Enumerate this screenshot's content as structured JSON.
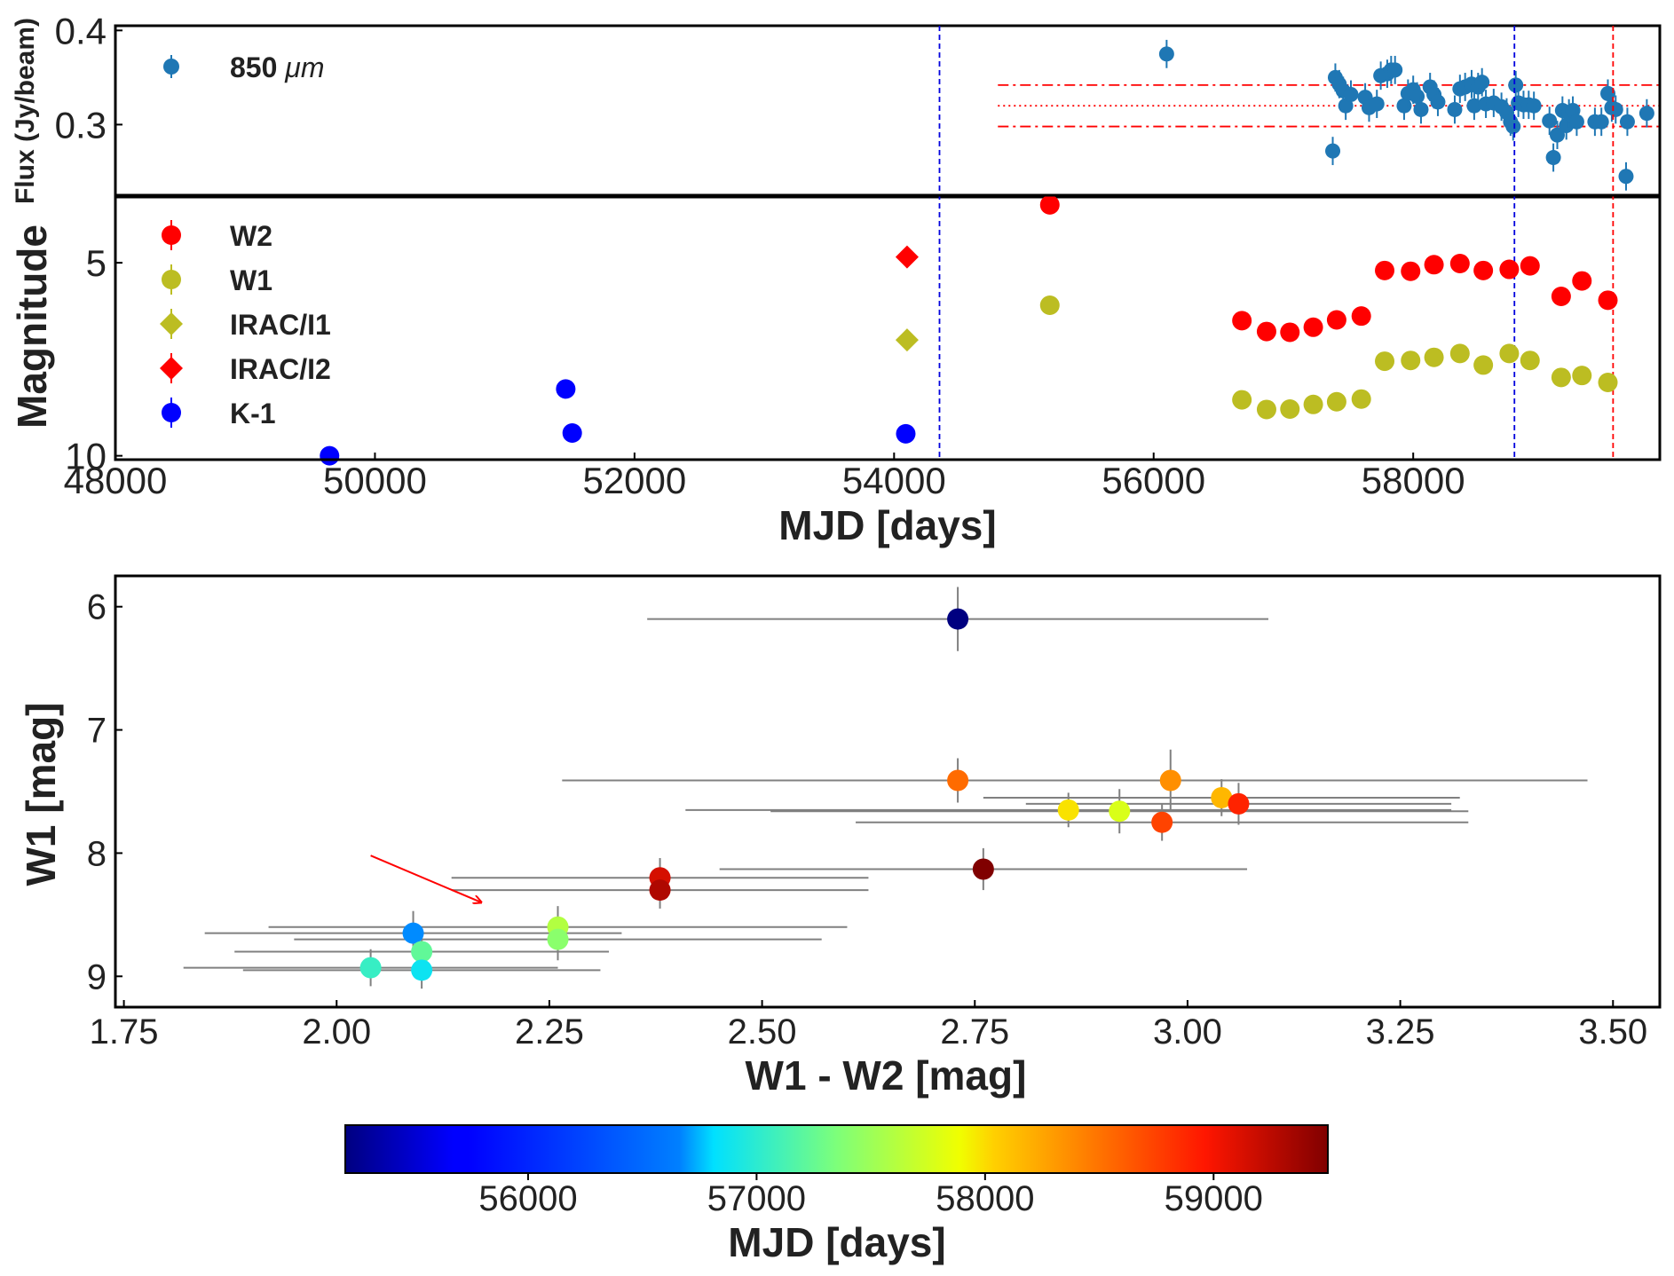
{
  "chart_data": [
    {
      "id": "submm",
      "type": "scatter",
      "title": "",
      "ylabel": "Flux (Jy/beam)",
      "xlim": [
        48000,
        59900
      ],
      "ylim": [
        0.225,
        0.405
      ],
      "yticks": [
        0.3,
        0.4
      ],
      "ytick_labels": [
        "0.3",
        "0.4"
      ],
      "legend": {
        "placement": "top-left",
        "entries": [
          {
            "label": "850",
            "label_unit": "μm",
            "color": "#1f77b4",
            "marker": "circle"
          }
        ]
      },
      "hlines": [
        {
          "y": 0.342,
          "style": "dashdot",
          "color": "#ff0000",
          "x_start": 54800
        },
        {
          "y": 0.32,
          "style": "dotted",
          "color": "#ff0000",
          "x_start": 54800
        },
        {
          "y": 0.298,
          "style": "dashdot",
          "color": "#ff0000",
          "x_start": 54800
        }
      ],
      "series": [
        {
          "name": "850 μm",
          "color": "#1f77b4",
          "yerr": 0.015,
          "points": [
            [
              56100,
              0.375
            ],
            [
              57380,
              0.272
            ],
            [
              57400,
              0.35
            ],
            [
              57430,
              0.343
            ],
            [
              57460,
              0.336
            ],
            [
              57480,
              0.32
            ],
            [
              57520,
              0.332
            ],
            [
              57630,
              0.329
            ],
            [
              57660,
              0.318
            ],
            [
              57720,
              0.322
            ],
            [
              57750,
              0.352
            ],
            [
              57800,
              0.354
            ],
            [
              57830,
              0.358
            ],
            [
              57860,
              0.358
            ],
            [
              57930,
              0.32
            ],
            [
              57960,
              0.333
            ],
            [
              58000,
              0.337
            ],
            [
              58030,
              0.33
            ],
            [
              58060,
              0.316
            ],
            [
              58130,
              0.34
            ],
            [
              58160,
              0.332
            ],
            [
              58190,
              0.324
            ],
            [
              58320,
              0.316
            ],
            [
              58360,
              0.338
            ],
            [
              58400,
              0.34
            ],
            [
              58450,
              0.343
            ],
            [
              58470,
              0.32
            ],
            [
              58500,
              0.34
            ],
            [
              58530,
              0.345
            ],
            [
              58560,
              0.322
            ],
            [
              58620,
              0.323
            ],
            [
              58680,
              0.319
            ],
            [
              58720,
              0.313
            ],
            [
              58750,
              0.303
            ],
            [
              58770,
              0.298
            ],
            [
              58790,
              0.342
            ],
            [
              58810,
              0.323
            ],
            [
              58850,
              0.321
            ],
            [
              58890,
              0.321
            ],
            [
              58930,
              0.32
            ],
            [
              59050,
              0.304
            ],
            [
              59080,
              0.265
            ],
            [
              59110,
              0.289
            ],
            [
              59150,
              0.315
            ],
            [
              59180,
              0.299
            ],
            [
              59200,
              0.312
            ],
            [
              59230,
              0.315
            ],
            [
              59260,
              0.303
            ],
            [
              59400,
              0.303
            ],
            [
              59450,
              0.303
            ],
            [
              59500,
              0.333
            ],
            [
              59530,
              0.318
            ],
            [
              59560,
              0.316
            ],
            [
              59640,
              0.245
            ],
            [
              59650,
              0.303
            ],
            [
              59800,
              0.312
            ]
          ]
        }
      ]
    },
    {
      "id": "lightcurve",
      "type": "scatter",
      "xlabel": "MJD [days]",
      "ylabel": "Magnitude",
      "xlim": [
        48000,
        59900
      ],
      "ylim": [
        10.1,
        3.25
      ],
      "xticks": [
        48000,
        50000,
        52000,
        54000,
        56000,
        58000
      ],
      "xtick_labels": [
        "48000",
        "50000",
        "52000",
        "54000",
        "56000",
        "58000"
      ],
      "yticks": [
        5,
        10
      ],
      "ytick_labels": [
        "5",
        "10"
      ],
      "vlines": [
        {
          "x": 54350,
          "color": "#0000dd",
          "style": "dashed"
        },
        {
          "x": 58780,
          "color": "#0000dd",
          "style": "dashed"
        },
        {
          "x": 59540,
          "color": "#ff0000",
          "style": "dashed"
        }
      ],
      "legend": {
        "placement": "top-left",
        "entries": [
          {
            "label": "W2",
            "color": "#ff0000",
            "marker": "circle"
          },
          {
            "label": "W1",
            "color": "#bcbd22",
            "marker": "circle"
          },
          {
            "label": "IRAC/I1",
            "color": "#bcbd22",
            "marker": "diamond"
          },
          {
            "label": "IRAC/I2",
            "color": "#ff0000",
            "marker": "diamond"
          },
          {
            "label": "K-1",
            "color": "#0000ff",
            "marker": "circle"
          }
        ]
      },
      "series": [
        {
          "name": "W2",
          "color": "#ff0000",
          "marker": "circle",
          "points": [
            [
              55200,
              3.5
            ],
            [
              56680,
              6.5
            ],
            [
              56870,
              6.78
            ],
            [
              57050,
              6.8
            ],
            [
              57230,
              6.67
            ],
            [
              57410,
              6.48
            ],
            [
              57600,
              6.38
            ],
            [
              57780,
              5.2
            ],
            [
              57980,
              5.22
            ],
            [
              58160,
              5.05
            ],
            [
              58360,
              5.02
            ],
            [
              58540,
              5.2
            ],
            [
              58740,
              5.17
            ],
            [
              58900,
              5.08
            ],
            [
              59140,
              5.87
            ],
            [
              59300,
              5.47
            ],
            [
              59500,
              5.97
            ]
          ]
        },
        {
          "name": "W1",
          "color": "#bcbd22",
          "marker": "circle",
          "points": [
            [
              55200,
              6.1
            ],
            [
              56680,
              8.55
            ],
            [
              56870,
              8.8
            ],
            [
              57050,
              8.79
            ],
            [
              57230,
              8.67
            ],
            [
              57410,
              8.6
            ],
            [
              57600,
              8.53
            ],
            [
              57780,
              7.55
            ],
            [
              57980,
              7.53
            ],
            [
              58160,
              7.45
            ],
            [
              58360,
              7.35
            ],
            [
              58540,
              7.65
            ],
            [
              58740,
              7.35
            ],
            [
              58900,
              7.53
            ],
            [
              59140,
              7.97
            ],
            [
              59300,
              7.92
            ],
            [
              59500,
              8.1
            ]
          ]
        },
        {
          "name": "IRAC/I1",
          "color": "#bcbd22",
          "marker": "diamond",
          "points": [
            [
              54100,
              7.0
            ]
          ]
        },
        {
          "name": "IRAC/I2",
          "color": "#ff0000",
          "marker": "diamond",
          "points": [
            [
              54100,
              4.85
            ]
          ]
        },
        {
          "name": "K-1",
          "color": "#0000ff",
          "marker": "circle",
          "points": [
            [
              49650,
              10.0
            ],
            [
              51470,
              8.27
            ],
            [
              51520,
              9.41
            ],
            [
              54090,
              9.43
            ]
          ]
        }
      ]
    },
    {
      "id": "colormag",
      "type": "scatter",
      "xlabel": "W1 - W2 [mag]",
      "ylabel": "W1 [mag]",
      "xlim": [
        1.74,
        3.555
      ],
      "ylim": [
        9.25,
        5.75
      ],
      "xticks": [
        1.75,
        2.0,
        2.25,
        2.5,
        2.75,
        3.0,
        3.25,
        3.5
      ],
      "xtick_labels": [
        "1.75",
        "2.00",
        "2.25",
        "2.50",
        "2.75",
        "3.00",
        "3.25",
        "3.50"
      ],
      "yticks": [
        6,
        7,
        8,
        9
      ],
      "ytick_labels": [
        "6",
        "7",
        "8",
        "9"
      ],
      "arrow": {
        "from": [
          2.04,
          8.02
        ],
        "to": [
          2.17,
          8.4
        ],
        "color": "#ff0000"
      },
      "points": [
        {
          "x": 2.73,
          "y": 6.1,
          "mjd": 55200,
          "xerr": 0.365,
          "yerr": 0.26
        },
        {
          "x": 2.73,
          "y": 7.41,
          "mjd": 58540,
          "xerr": 0.465,
          "yerr": 0.18
        },
        {
          "x": 2.98,
          "y": 7.41,
          "mjd": 58360,
          "xerr": 0.49,
          "yerr": 0.25
        },
        {
          "x": 3.04,
          "y": 7.55,
          "mjd": 58160,
          "xerr": 0.28,
          "yerr": 0.15
        },
        {
          "x": 3.06,
          "y": 7.6,
          "mjd": 58900,
          "xerr": 0.25,
          "yerr": 0.17
        },
        {
          "x": 2.86,
          "y": 7.65,
          "mjd": 57980,
          "xerr": 0.45,
          "yerr": 0.14
        },
        {
          "x": 2.92,
          "y": 7.66,
          "mjd": 57780,
          "xerr": 0.41,
          "yerr": 0.18
        },
        {
          "x": 2.97,
          "y": 7.75,
          "mjd": 58740,
          "xerr": 0.36,
          "yerr": 0.15
        },
        {
          "x": 2.76,
          "y": 8.13,
          "mjd": 59500,
          "xerr": 0.31,
          "yerr": 0.17
        },
        {
          "x": 2.38,
          "y": 8.2,
          "mjd": 59140,
          "xerr": 0.245,
          "yerr": 0.16
        },
        {
          "x": 2.38,
          "y": 8.3,
          "mjd": 59300,
          "xerr": 0.245,
          "yerr": 0.15
        },
        {
          "x": 2.26,
          "y": 8.6,
          "mjd": 57600,
          "xerr": 0.34,
          "yerr": 0.17
        },
        {
          "x": 2.26,
          "y": 8.7,
          "mjd": 57410,
          "xerr": 0.31,
          "yerr": 0.17
        },
        {
          "x": 2.09,
          "y": 8.65,
          "mjd": 56680,
          "xerr": 0.245,
          "yerr": 0.18
        },
        {
          "x": 2.1,
          "y": 8.8,
          "mjd": 57230,
          "xerr": 0.22,
          "yerr": 0.19
        },
        {
          "x": 2.04,
          "y": 8.93,
          "mjd": 57050,
          "xerr": 0.22,
          "yerr": 0.15
        },
        {
          "x": 2.1,
          "y": 8.95,
          "mjd": 56870,
          "xerr": 0.21,
          "yerr": 0.15
        }
      ]
    },
    {
      "id": "colorbar",
      "type": "colorbar",
      "xlabel": "MJD [days]",
      "range": [
        55200,
        59500
      ],
      "colormap": "jet",
      "ticks": [
        56000,
        57000,
        58000,
        59000
      ],
      "tick_labels": [
        "56000",
        "57000",
        "58000",
        "59000"
      ]
    }
  ]
}
